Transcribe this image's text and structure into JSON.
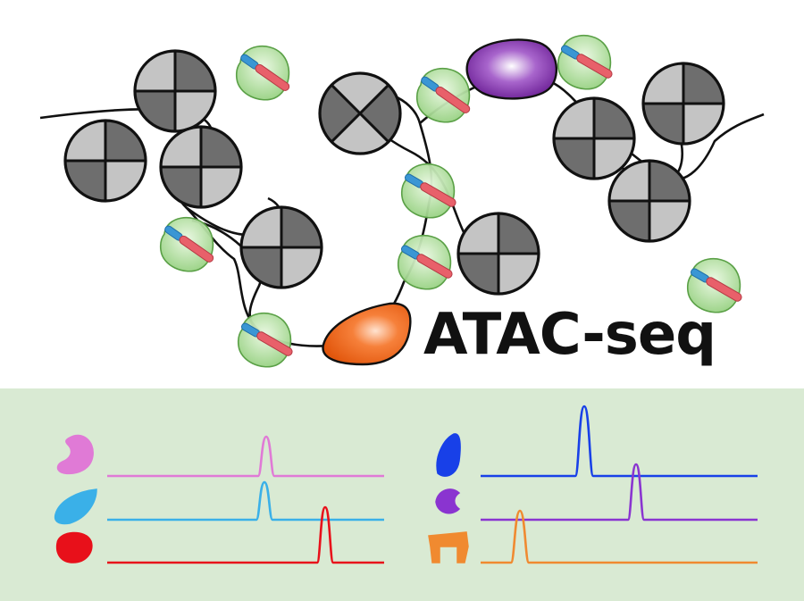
{
  "title": "ATAC-seq",
  "colors": {
    "chromatin": "#111111",
    "nucleosome_dark": "#6e6e6e",
    "nucleosome_light": "#c4c4c4",
    "tn5_body": "#a9dc97",
    "adapter_blue": "#3a96d4",
    "adapter_red": "#e8606a",
    "tf_purple": "#8a3bb0",
    "tf_orange": "#f06a1e",
    "panel_background": "#d9ead3"
  },
  "tracks": {
    "left": [
      {
        "icon": "pink-protein-icon",
        "color": "#e07ad6"
      },
      {
        "icon": "skyblue-protein-icon",
        "color": "#3ab0e8"
      },
      {
        "icon": "red-protein-icon",
        "color": "#e8101a"
      }
    ],
    "right": [
      {
        "icon": "blue-protein-icon",
        "color": "#1840e8"
      },
      {
        "icon": "violet-protein-icon",
        "color": "#8a34d0"
      },
      {
        "icon": "orange-protein-icon",
        "color": "#f08a30"
      }
    ]
  }
}
